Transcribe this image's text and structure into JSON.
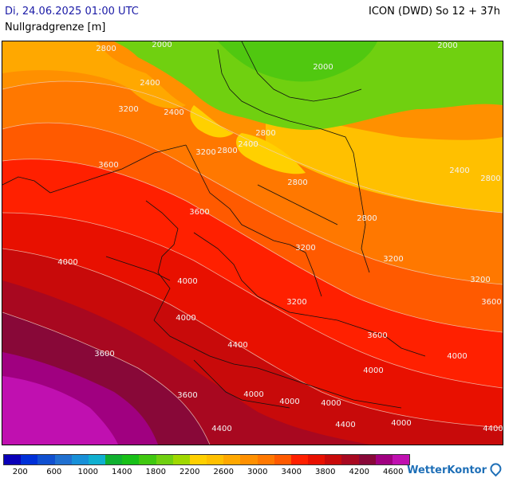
{
  "header": {
    "date": "Di, 24.06.2025 01:00 UTC",
    "model": "ICON (DWD) So 12 + 37h",
    "parameter": "Nullgradgrenze [m]"
  },
  "map": {
    "contour_labels": [
      "2000",
      "2800",
      "2400",
      "3200",
      "2400",
      "2000",
      "2000",
      "2800",
      "2400",
      "2800",
      "3200",
      "3600",
      "3600",
      "2800",
      "2400",
      "2800",
      "2800",
      "3200",
      "3200",
      "4000",
      "4000",
      "3200",
      "3200",
      "3600",
      "3600",
      "4000",
      "3600",
      "4400",
      "4000",
      "3600",
      "4000",
      "4400",
      "4000",
      "4400",
      "4000",
      "4400",
      "4000",
      "4000"
    ]
  },
  "legend": {
    "colors": [
      "#0a00b8",
      "#0030d8",
      "#1050d0",
      "#2070d0",
      "#1890d8",
      "#10b0d0",
      "#10b030",
      "#18c018",
      "#40c810",
      "#70d010",
      "#a0d800",
      "#ffd000",
      "#ffc000",
      "#ffa800",
      "#ff9000",
      "#ff7800",
      "#ff5a00",
      "#ff2000",
      "#e81000",
      "#c80a0a",
      "#a80820",
      "#880838",
      "#a00080",
      "#c010b0"
    ],
    "ticks": [
      "200",
      "600",
      "1000",
      "1400",
      "1800",
      "2200",
      "2600",
      "3000",
      "3400",
      "3800",
      "4200",
      "4600"
    ]
  },
  "brand": "WetterKontor"
}
